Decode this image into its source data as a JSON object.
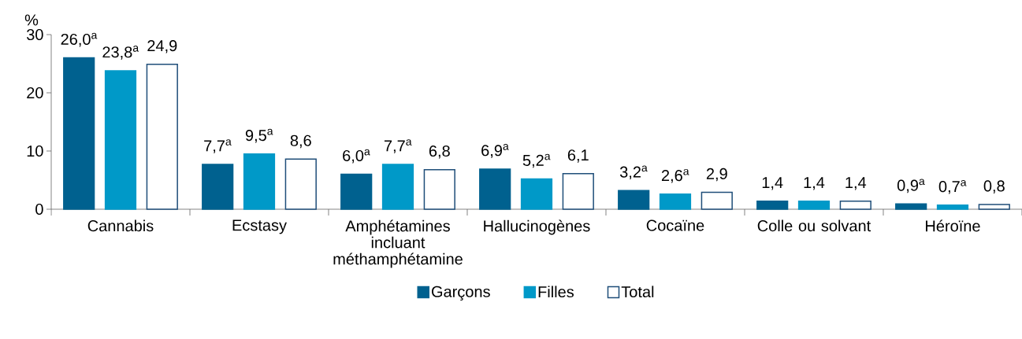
{
  "chart_data": {
    "type": "bar",
    "ylabel": "%",
    "categories": [
      "Cannabis",
      "Ecstasy",
      "Amphétamines incluant méthamphétamine",
      "Hallucinogènes",
      "Cocaïne",
      "Colle ou solvant",
      "Héroïne"
    ],
    "series": [
      {
        "name": "Garçons",
        "color": "#00618f",
        "values": [
          26.0,
          7.7,
          6.0,
          6.9,
          3.2,
          1.4,
          0.9
        ],
        "value_labels": [
          "26,0$^{a}$",
          "7,7$^{a}$",
          "6,0$^{a}$",
          "6,9$^{a}$",
          "3,2$^{a}$",
          "1,4",
          "0,9$^{a}$"
        ]
      },
      {
        "name": "Filles",
        "color": "#0099c8",
        "values": [
          23.8,
          9.5,
          7.7,
          5.2,
          2.6,
          1.4,
          0.7
        ],
        "value_labels": [
          "23,8$^{a}$",
          "9,5$^{a}$",
          "7,7$^{a}$",
          "5,2$^{a}$",
          "2,6$^{a}$",
          "1,4",
          "0,7$^{a}$"
        ]
      },
      {
        "name": "Total",
        "color": "#ffffff",
        "values": [
          24.9,
          8.6,
          6.8,
          6.1,
          2.9,
          1.4,
          0.8
        ],
        "value_labels": [
          "24,9",
          "8,6",
          "6,8",
          "6,1",
          "2,9",
          "1,4",
          "0,8"
        ]
      }
    ],
    "ylim": [
      0,
      30
    ],
    "yticks": [
      0,
      10,
      20,
      30
    ],
    "grid": false,
    "legend": "bottom"
  }
}
